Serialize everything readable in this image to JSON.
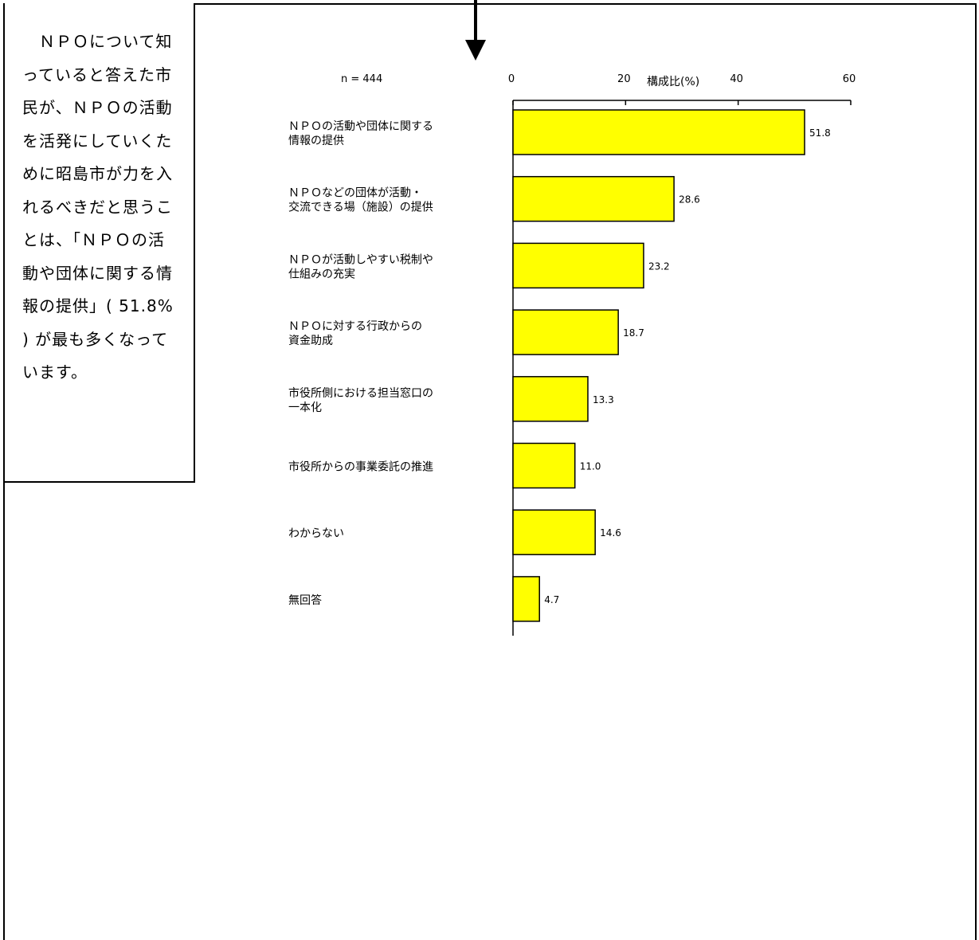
{
  "callout": {
    "text": "　ＮＰＯについて知っていると答えた市民が、ＮＰＯの活動を活発にしていくために昭島市が力を入れるべきだと思うことは、「ＮＰＯの活動や団体に関する情報の提供」( 51.8% ) が最も多くなっています。"
  },
  "chart_data": {
    "type": "bar",
    "orientation": "horizontal",
    "n_label": "n = 444",
    "xlabel": "構成比(%)",
    "xlim": [
      0,
      60
    ],
    "xticks": [
      0,
      20,
      40,
      60
    ],
    "grid": false,
    "bar_color": "#ffff00",
    "categories": [
      [
        "ＮＰＯの活動や団体に関する",
        "情報の提供"
      ],
      [
        "ＮＰＯなどの団体が活動・",
        "交流できる場（施設）の提供"
      ],
      [
        "ＮＰＯが活動しやすい税制や",
        "仕組みの充実"
      ],
      [
        "ＮＰＯに対する行政からの",
        "資金助成"
      ],
      [
        "市役所側における担当窓口の",
        "一本化"
      ],
      [
        "市役所からの事業委託の推進"
      ],
      [
        "わからない"
      ],
      [
        "無回答"
      ]
    ],
    "values": [
      51.8,
      28.6,
      23.2,
      18.7,
      13.3,
      11.0,
      14.6,
      4.7
    ],
    "value_labels": [
      "51.8",
      "28.6",
      "23.2",
      "18.7",
      "13.3",
      "11.0",
      "14.6",
      "4.7"
    ]
  }
}
